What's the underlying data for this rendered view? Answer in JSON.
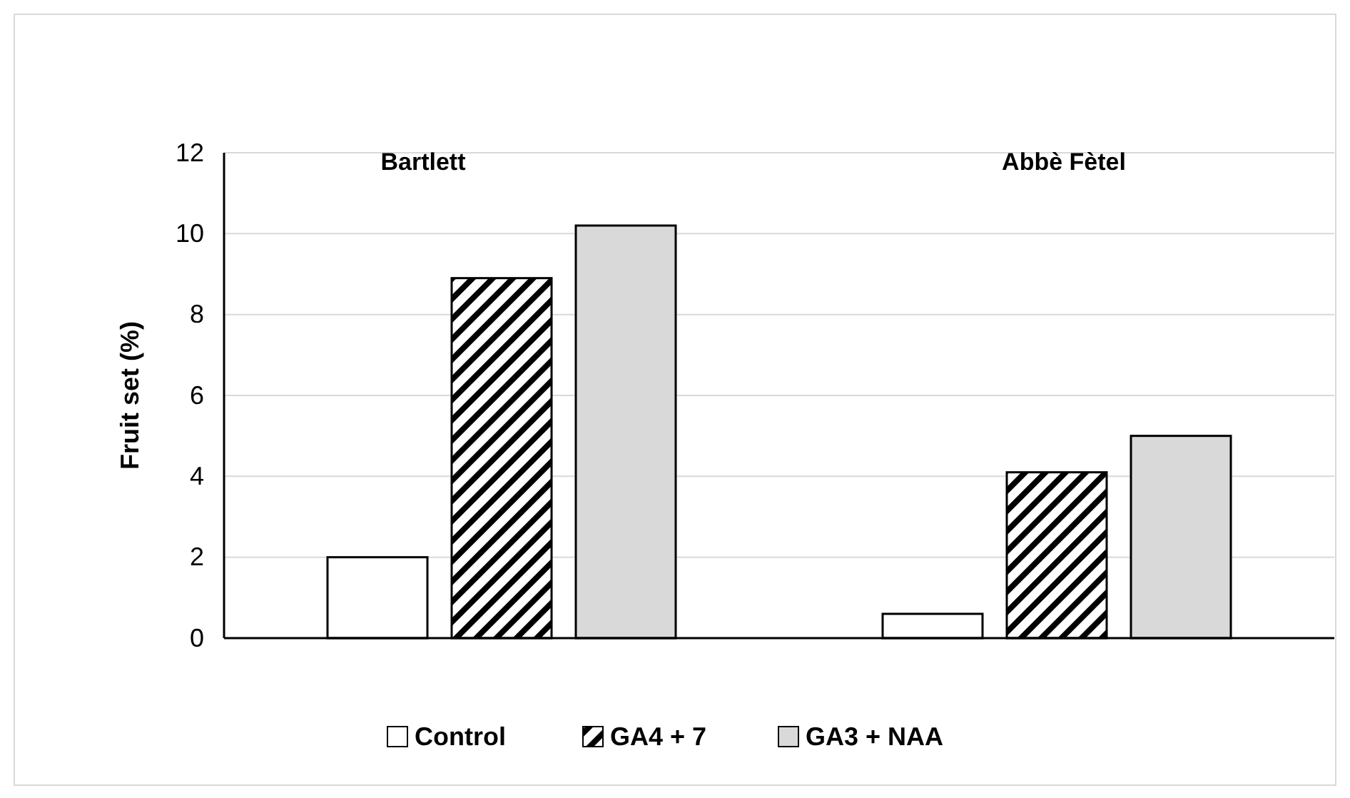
{
  "chart_data": {
    "type": "bar",
    "ylabel": "Fruit set (%)",
    "categories": [
      "Bartlett",
      "Abbè Fètel"
    ],
    "series": [
      {
        "name": "Control",
        "color": "#ffffff",
        "values": [
          2.0,
          0.6
        ]
      },
      {
        "name": "GA4 + 7",
        "color": "#000000",
        "values": [
          8.9,
          4.1
        ]
      },
      {
        "name": "GA3 + NAA",
        "color": "#d9d9d9",
        "values": [
          10.2,
          5.0
        ]
      }
    ],
    "ylim": [
      0,
      12
    ],
    "yticks": [
      0,
      2,
      4,
      6,
      8,
      10,
      12
    ],
    "grid": "y",
    "legend": "bottom"
  }
}
